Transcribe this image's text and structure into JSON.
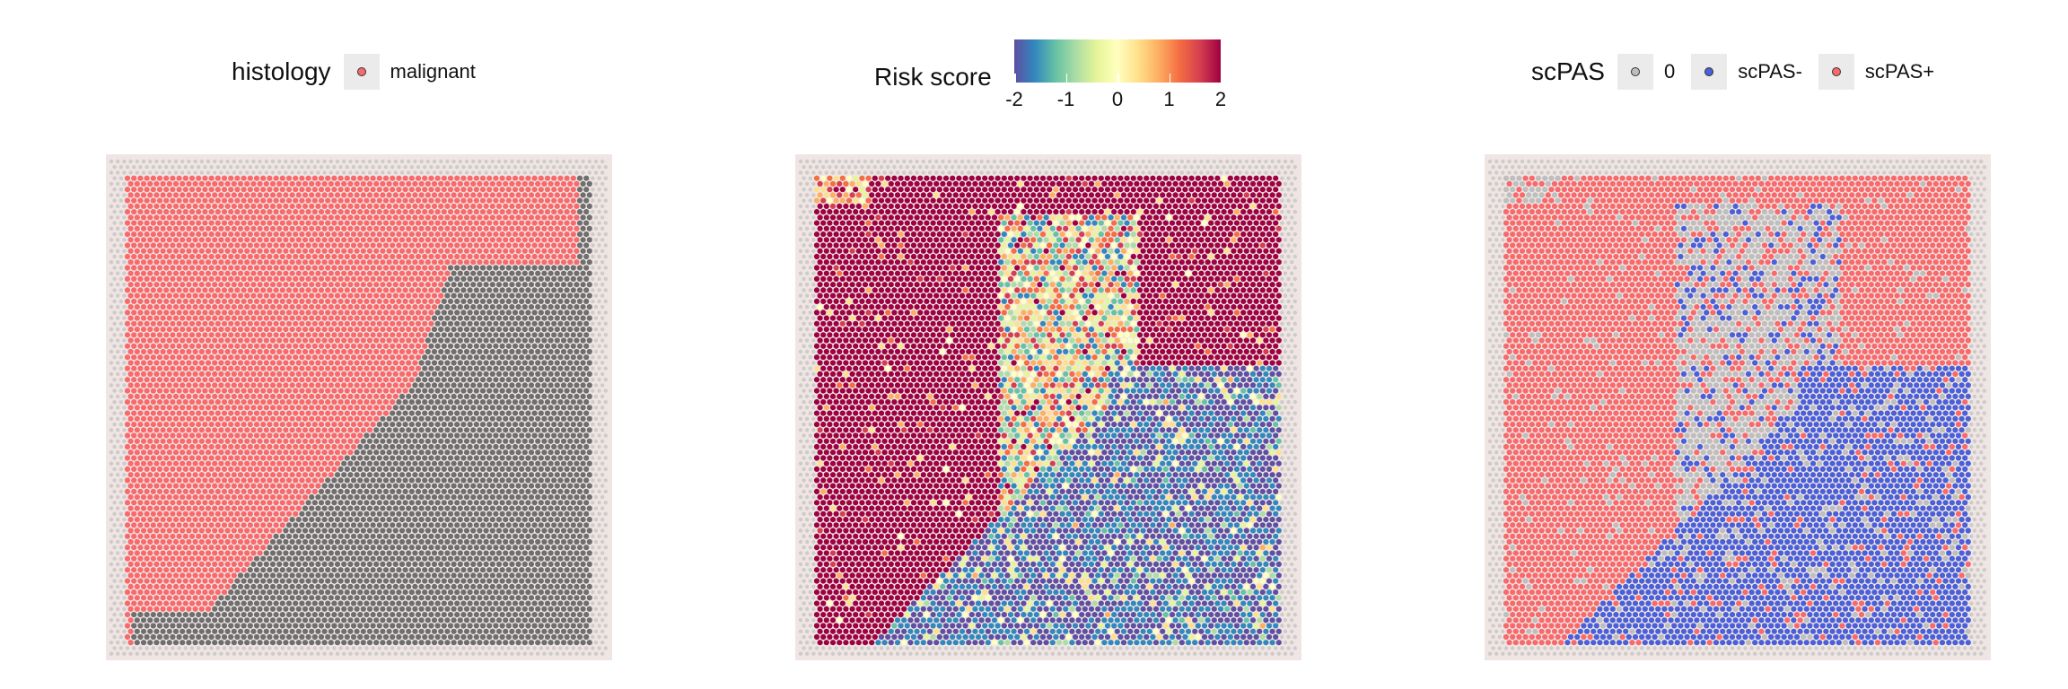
{
  "chart_data": [
    {
      "type": "scatter",
      "legend": {
        "title": "histology",
        "entries": [
          {
            "label": "malignant",
            "color": "#f8696b"
          }
        ],
        "placement": "top"
      },
      "background_spot_color": "#6e6e6e"
    },
    {
      "type": "scatter",
      "legend": {
        "title": "Risk score",
        "colormap": [
          "#5e4fa2",
          "#3288bd",
          "#66c2a5",
          "#abdda4",
          "#e6f598",
          "#ffffbf",
          "#fee08b",
          "#fdae61",
          "#f46d43",
          "#d53e4f",
          "#9e0142"
        ],
        "range": [
          -2,
          2
        ],
        "ticks": [
          "-2",
          "-1",
          "0",
          "1",
          "2"
        ],
        "placement": "top"
      }
    },
    {
      "type": "scatter",
      "legend": {
        "title": "scPAS",
        "entries": [
          {
            "label": "0",
            "color": "#bebebe"
          },
          {
            "label": "scPAS-",
            "color": "#4a5fd8"
          },
          {
            "label": "scPAS+",
            "color": "#f8696b"
          }
        ],
        "placement": "top"
      }
    }
  ]
}
